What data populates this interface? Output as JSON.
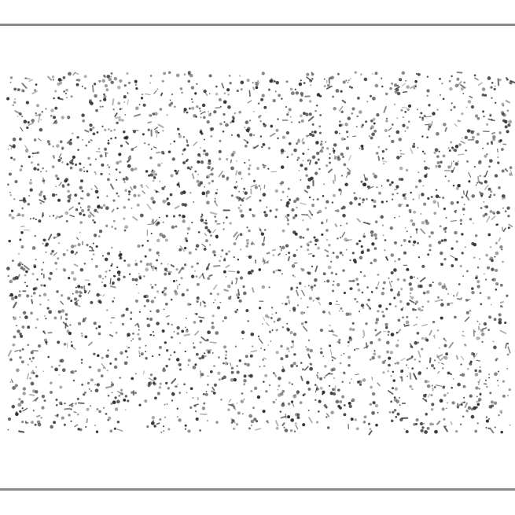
{
  "image": {
    "background_color": "#ffffff",
    "rule_color": "#8a8a8a",
    "dot_color": "#2a2a2a",
    "pattern": "random-dot-stereogram"
  }
}
